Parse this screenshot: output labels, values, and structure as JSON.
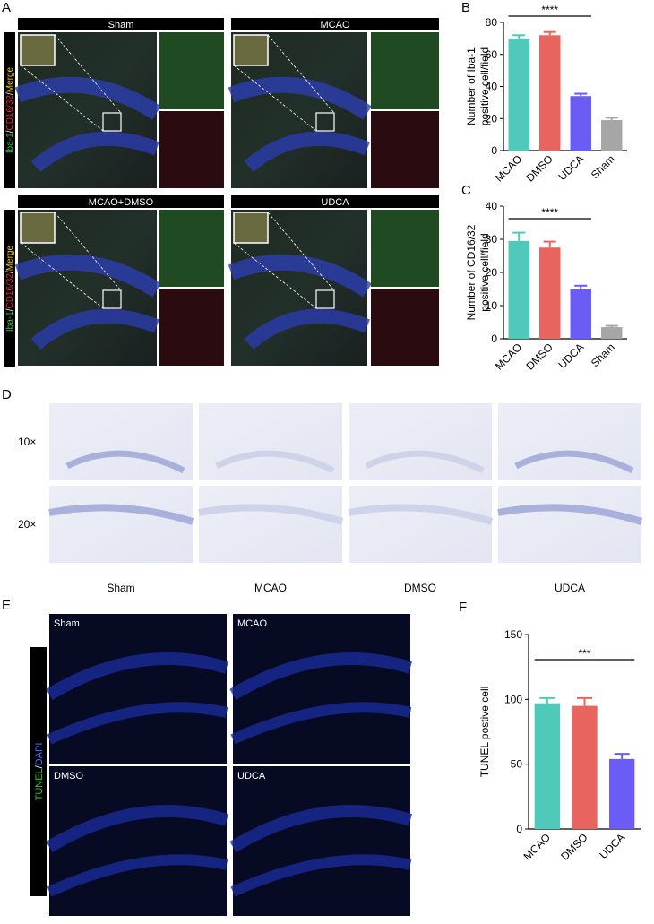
{
  "panel_labels": [
    "A",
    "B",
    "C",
    "D",
    "E",
    "F"
  ],
  "panel_a": {
    "headers": [
      "Sham",
      "MCAO",
      "MCAO+DMSO",
      "UDCA"
    ],
    "stain_label": [
      "Iba-1",
      "/",
      "CD16/32",
      "/",
      "Merge"
    ]
  },
  "panel_d": {
    "magnifications": [
      "10×",
      "20×"
    ],
    "groups": [
      "Sham",
      "MCAO",
      "DMSO",
      "UDCA"
    ]
  },
  "panel_e": {
    "groups": [
      "Sham",
      "MCAO",
      "DMSO",
      "UDCA"
    ],
    "stain_label": [
      "TUNEL",
      "/",
      "DAPI"
    ]
  },
  "chart_data": [
    {
      "type": "bar",
      "ylabel": [
        "Number of Iba-1",
        "positive cell/field"
      ],
      "categories": [
        "MCAO",
        "DMSO",
        "UDCA",
        "Sham"
      ],
      "values": [
        70,
        72,
        34,
        19
      ],
      "errors": [
        2,
        2,
        1.5,
        1.5
      ],
      "colors": [
        "#4fc9b9",
        "#e8645f",
        "#6a5cf5",
        "#a6a6a6"
      ],
      "ylim": [
        0,
        80
      ],
      "yticks": [
        0,
        20,
        40,
        60,
        80
      ],
      "annotation": "****"
    },
    {
      "type": "bar",
      "ylabel": [
        "Number of CD16/32",
        "positive cell/field"
      ],
      "categories": [
        "MCAO",
        "DMSO",
        "UDCA",
        "Sham"
      ],
      "values": [
        29.5,
        27.5,
        15,
        3.5
      ],
      "errors": [
        2.5,
        1.8,
        1,
        0.4
      ],
      "colors": [
        "#4fc9b9",
        "#e8645f",
        "#6a5cf5",
        "#a6a6a6"
      ],
      "ylim": [
        0,
        40
      ],
      "yticks": [
        0,
        10,
        20,
        30,
        40
      ],
      "annotation": "****"
    },
    {
      "type": "bar",
      "ylabel": [
        "TUNEL postive cell"
      ],
      "categories": [
        "MCAO",
        "DMSO",
        "UDCA"
      ],
      "values": [
        97,
        95,
        54
      ],
      "errors": [
        4,
        6,
        4
      ],
      "colors": [
        "#4fc9b9",
        "#e8645f",
        "#6a5cf5"
      ],
      "ylim": [
        0,
        150
      ],
      "yticks": [
        0,
        50,
        100,
        150
      ],
      "annotation": "***"
    }
  ]
}
